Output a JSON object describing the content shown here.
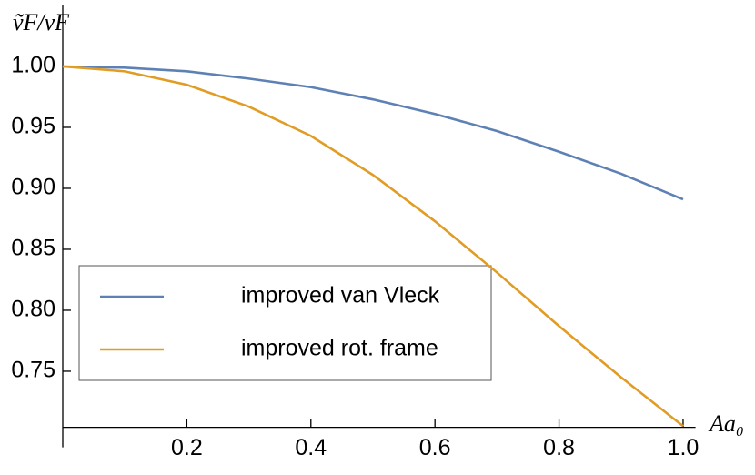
{
  "chart_data": {
    "type": "line",
    "x_label": "Aa₀",
    "y_label": "ṽF/vF",
    "x": [
      0,
      0.1,
      0.2,
      0.3,
      0.4,
      0.5,
      0.6,
      0.7,
      0.8,
      0.9,
      1.0
    ],
    "series": [
      {
        "name": "improved van Vleck",
        "color": "#5e81b5",
        "values": [
          1.0,
          0.999,
          0.996,
          0.99,
          0.983,
          0.973,
          0.961,
          0.947,
          0.93,
          0.912,
          0.891
        ]
      },
      {
        "name": "improved rot. frame",
        "color": "#e19c24",
        "values": [
          1.0,
          0.996,
          0.985,
          0.967,
          0.943,
          0.911,
          0.873,
          0.831,
          0.787,
          0.745,
          0.705
        ]
      }
    ],
    "xlim": [
      0,
      1.02
    ],
    "ylim": [
      0.704,
      1.05
    ],
    "xticks": [
      0.2,
      0.4,
      0.6,
      0.8,
      {
        "value": 1,
        "label": "1.0"
      }
    ],
    "yticks": [
      {
        "value": 0.75,
        "label": "0.75"
      },
      {
        "value": 0.8,
        "label": "0.80"
      },
      {
        "value": 0.85,
        "label": "0.85"
      },
      {
        "value": 0.9,
        "label": "0.90"
      },
      {
        "value": 0.95,
        "label": "0.95"
      },
      {
        "value": 1,
        "label": "1.00"
      }
    ],
    "grid": false,
    "legend": "lower left"
  }
}
